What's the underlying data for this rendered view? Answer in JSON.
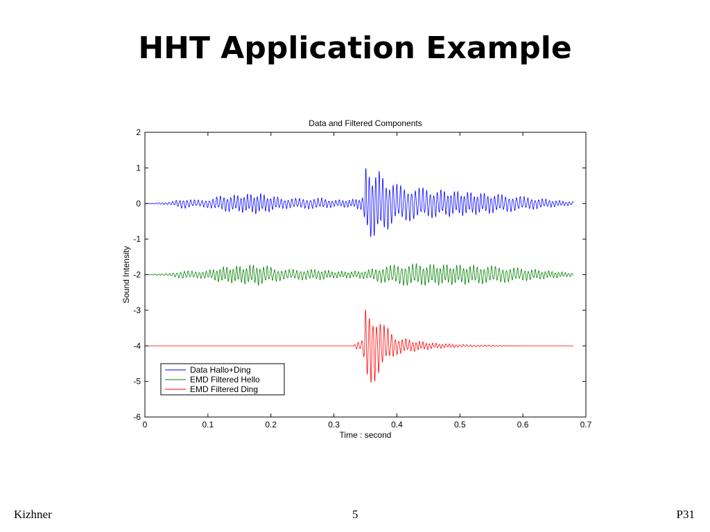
{
  "slide": {
    "title": "HHT Application Example",
    "footer_left": "Kizhner",
    "footer_center": "5",
    "footer_right": "P31"
  },
  "chart_data": {
    "type": "line",
    "title": "Data and Filtered Components",
    "xlabel": "Time : second",
    "ylabel": "Sound Intensity",
    "xlim": [
      0,
      0.7
    ],
    "ylim": [
      -6,
      2
    ],
    "xticks": [
      "0",
      "0.1",
      "0.2",
      "0.3",
      "0.4",
      "0.5",
      "0.6",
      "0.7"
    ],
    "yticks": [
      "2",
      "1",
      "0",
      "-1",
      "-2",
      "-3",
      "-4",
      "-5",
      "-6"
    ],
    "grid": false,
    "legend_position": "bottom-left",
    "series": [
      {
        "name": "Data  Hallo+Ding",
        "color": "#0000ff",
        "baseline": 0,
        "envelope": [
          [
            0,
            0.0
          ],
          [
            0.04,
            0.04
          ],
          [
            0.06,
            0.15
          ],
          [
            0.08,
            0.1
          ],
          [
            0.1,
            0.12
          ],
          [
            0.12,
            0.22
          ],
          [
            0.15,
            0.25
          ],
          [
            0.18,
            0.3
          ],
          [
            0.22,
            0.15
          ],
          [
            0.25,
            0.15
          ],
          [
            0.28,
            0.16
          ],
          [
            0.3,
            0.1
          ],
          [
            0.33,
            0.12
          ],
          [
            0.346,
            0.2
          ],
          [
            0.35,
            1.0
          ],
          [
            0.36,
            1.0
          ],
          [
            0.37,
            0.95
          ],
          [
            0.38,
            0.8
          ],
          [
            0.4,
            0.55
          ],
          [
            0.45,
            0.42
          ],
          [
            0.5,
            0.35
          ],
          [
            0.55,
            0.28
          ],
          [
            0.6,
            0.2
          ],
          [
            0.65,
            0.1
          ],
          [
            0.68,
            0.05
          ]
        ]
      },
      {
        "name": "EMD Filtered Hello",
        "color": "#008000",
        "baseline": -2,
        "envelope": [
          [
            0,
            0.0
          ],
          [
            0.04,
            0.04
          ],
          [
            0.06,
            0.12
          ],
          [
            0.08,
            0.1
          ],
          [
            0.1,
            0.12
          ],
          [
            0.12,
            0.22
          ],
          [
            0.15,
            0.25
          ],
          [
            0.18,
            0.3
          ],
          [
            0.22,
            0.15
          ],
          [
            0.25,
            0.15
          ],
          [
            0.28,
            0.15
          ],
          [
            0.3,
            0.1
          ],
          [
            0.33,
            0.1
          ],
          [
            0.35,
            0.12
          ],
          [
            0.38,
            0.25
          ],
          [
            0.42,
            0.32
          ],
          [
            0.45,
            0.3
          ],
          [
            0.5,
            0.28
          ],
          [
            0.55,
            0.25
          ],
          [
            0.6,
            0.18
          ],
          [
            0.65,
            0.1
          ],
          [
            0.68,
            0.05
          ]
        ]
      },
      {
        "name": "EMD Filtered Ding",
        "color": "#ff0000",
        "baseline": -4,
        "envelope": [
          [
            0,
            0.0
          ],
          [
            0.33,
            0.0
          ],
          [
            0.335,
            0.1
          ],
          [
            0.345,
            0.15
          ],
          [
            0.35,
            1.1
          ],
          [
            0.36,
            1.1
          ],
          [
            0.37,
            0.9
          ],
          [
            0.38,
            0.6
          ],
          [
            0.4,
            0.25
          ],
          [
            0.43,
            0.15
          ],
          [
            0.46,
            0.08
          ],
          [
            0.5,
            0.04
          ],
          [
            0.55,
            0.02
          ],
          [
            0.6,
            0.0
          ],
          [
            0.68,
            0.0
          ]
        ]
      }
    ]
  }
}
